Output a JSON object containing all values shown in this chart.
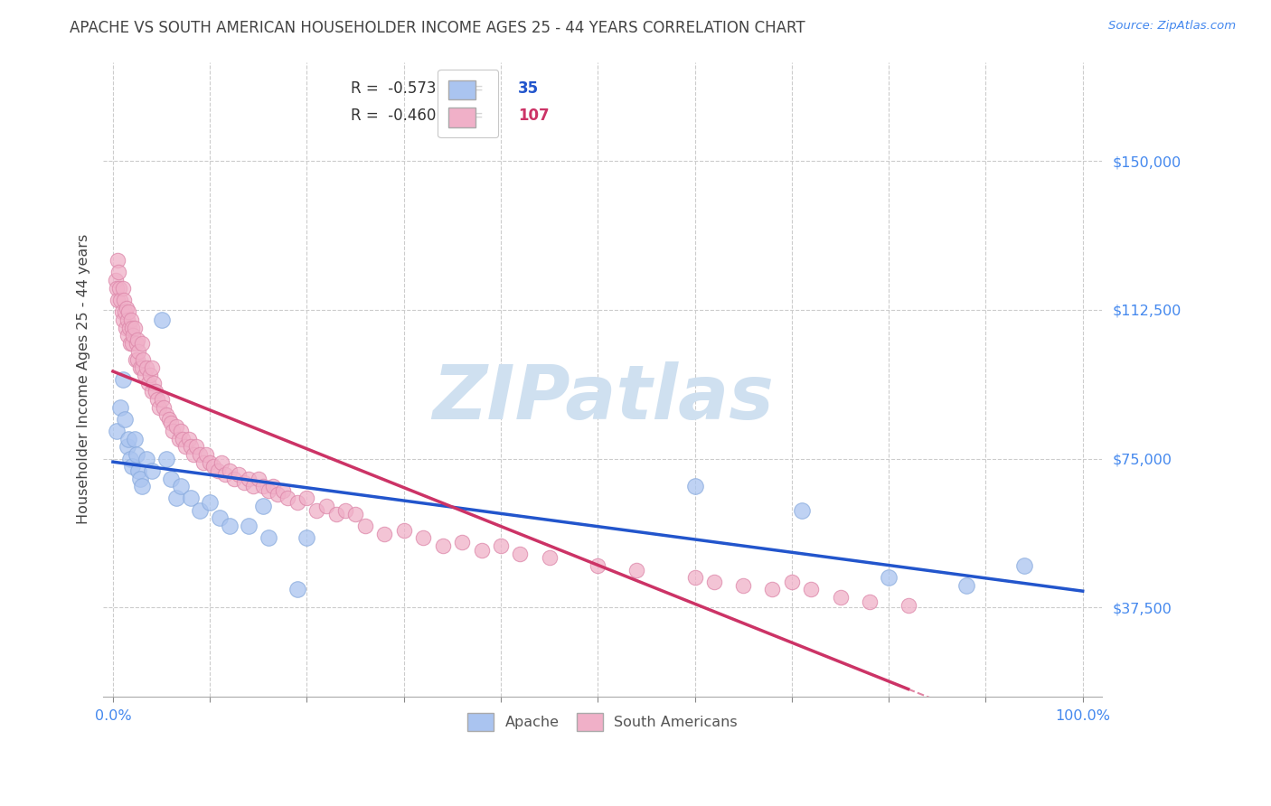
{
  "title": "APACHE VS SOUTH AMERICAN HOUSEHOLDER INCOME AGES 25 - 44 YEARS CORRELATION CHART",
  "source": "Source: ZipAtlas.com",
  "ylabel": "Householder Income Ages 25 - 44 years",
  "xlim": [
    -0.01,
    1.02
  ],
  "ylim": [
    15000,
    175000
  ],
  "ytick_vals": [
    37500,
    75000,
    112500,
    150000
  ],
  "yticklabels": [
    "$37,500",
    "$75,000",
    "$112,500",
    "$150,000"
  ],
  "xtick_positions": [
    0.0,
    0.1,
    0.2,
    0.3,
    0.4,
    0.5,
    0.6,
    0.7,
    0.8,
    0.9,
    1.0
  ],
  "xticklabels": [
    "0.0%",
    "",
    "",
    "",
    "",
    "",
    "",
    "",
    "",
    "",
    "100.0%"
  ],
  "apache_R": -0.573,
  "apache_N": 35,
  "sa_R": -0.46,
  "sa_N": 107,
  "apache_color": "#aac4f0",
  "sa_color": "#f0b0c8",
  "apache_edge_color": "#88aadd",
  "sa_edge_color": "#dd88aa",
  "apache_line_color": "#2255cc",
  "sa_line_color": "#cc3366",
  "watermark_color": "#cfe0f0",
  "title_color": "#444444",
  "source_color": "#4488ee",
  "ytick_color": "#4488ee",
  "xtick_color": "#4488ee",
  "grid_color": "#cccccc",
  "background_color": "#ffffff",
  "apache_x": [
    0.004,
    0.008,
    0.01,
    0.012,
    0.015,
    0.016,
    0.018,
    0.02,
    0.022,
    0.024,
    0.026,
    0.028,
    0.03,
    0.035,
    0.04,
    0.05,
    0.055,
    0.06,
    0.065,
    0.07,
    0.08,
    0.09,
    0.1,
    0.11,
    0.12,
    0.14,
    0.155,
    0.16,
    0.19,
    0.2,
    0.6,
    0.71,
    0.8,
    0.88,
    0.94
  ],
  "apache_y": [
    82000,
    88000,
    95000,
    85000,
    78000,
    80000,
    75000,
    73000,
    80000,
    76000,
    72000,
    70000,
    68000,
    75000,
    72000,
    110000,
    75000,
    70000,
    65000,
    68000,
    65000,
    62000,
    64000,
    60000,
    58000,
    58000,
    63000,
    55000,
    42000,
    55000,
    68000,
    62000,
    45000,
    43000,
    48000
  ],
  "sa_x": [
    0.003,
    0.004,
    0.005,
    0.005,
    0.006,
    0.007,
    0.008,
    0.009,
    0.01,
    0.01,
    0.011,
    0.012,
    0.013,
    0.014,
    0.015,
    0.015,
    0.016,
    0.017,
    0.018,
    0.019,
    0.02,
    0.02,
    0.021,
    0.022,
    0.023,
    0.024,
    0.025,
    0.025,
    0.026,
    0.028,
    0.03,
    0.03,
    0.031,
    0.033,
    0.035,
    0.036,
    0.038,
    0.04,
    0.04,
    0.042,
    0.044,
    0.046,
    0.048,
    0.05,
    0.052,
    0.055,
    0.058,
    0.06,
    0.062,
    0.065,
    0.068,
    0.07,
    0.072,
    0.075,
    0.078,
    0.08,
    0.083,
    0.086,
    0.09,
    0.093,
    0.096,
    0.1,
    0.104,
    0.108,
    0.112,
    0.116,
    0.12,
    0.125,
    0.13,
    0.135,
    0.14,
    0.145,
    0.15,
    0.155,
    0.16,
    0.165,
    0.17,
    0.175,
    0.18,
    0.19,
    0.2,
    0.21,
    0.22,
    0.23,
    0.24,
    0.25,
    0.26,
    0.28,
    0.3,
    0.32,
    0.34,
    0.36,
    0.38,
    0.4,
    0.42,
    0.45,
    0.5,
    0.54,
    0.6,
    0.62,
    0.65,
    0.68,
    0.7,
    0.72,
    0.75,
    0.78,
    0.82
  ],
  "sa_y": [
    120000,
    118000,
    125000,
    115000,
    122000,
    118000,
    115000,
    112000,
    118000,
    110000,
    115000,
    112000,
    108000,
    113000,
    110000,
    106000,
    112000,
    108000,
    104000,
    110000,
    108000,
    104000,
    106000,
    108000,
    100000,
    104000,
    105000,
    100000,
    102000,
    98000,
    104000,
    98000,
    100000,
    96000,
    98000,
    94000,
    96000,
    98000,
    92000,
    94000,
    92000,
    90000,
    88000,
    90000,
    88000,
    86000,
    85000,
    84000,
    82000,
    83000,
    80000,
    82000,
    80000,
    78000,
    80000,
    78000,
    76000,
    78000,
    76000,
    74000,
    76000,
    74000,
    73000,
    72000,
    74000,
    71000,
    72000,
    70000,
    71000,
    69000,
    70000,
    68000,
    70000,
    68000,
    67000,
    68000,
    66000,
    67000,
    65000,
    64000,
    65000,
    62000,
    63000,
    61000,
    62000,
    61000,
    58000,
    56000,
    57000,
    55000,
    53000,
    54000,
    52000,
    53000,
    51000,
    50000,
    48000,
    47000,
    45000,
    44000,
    43000,
    42000,
    44000,
    42000,
    40000,
    39000,
    38000
  ]
}
